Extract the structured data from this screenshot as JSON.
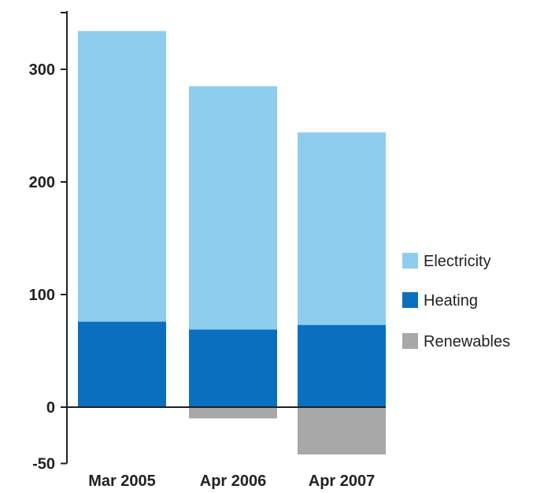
{
  "chart_data": {
    "type": "bar",
    "stacked": true,
    "title": "",
    "xlabel": "",
    "ylabel": "",
    "categories": [
      "Mar 2005",
      "Apr 2006",
      "Apr 2007"
    ],
    "series": [
      {
        "name": "Heating",
        "values": [
          76,
          69,
          73
        ],
        "color": "#0a6fbf"
      },
      {
        "name": "Electricity",
        "values": [
          258,
          216,
          171
        ],
        "color": "#8fcdee"
      },
      {
        "name": "Renewables",
        "values": [
          0,
          -10,
          -42
        ],
        "color": "#a8a8a8"
      }
    ],
    "ylim": [
      -50,
      350
    ],
    "yticks": [
      -50,
      0,
      100,
      200,
      300
    ],
    "ytick_labels": [
      "-50",
      "0",
      "100",
      "200",
      "300"
    ],
    "legend": {
      "placement": "right",
      "entries": [
        {
          "label": "Electricity",
          "color": "#8fcdee"
        },
        {
          "label": "Heating",
          "color": "#0a6fbf"
        },
        {
          "label": "Renewables",
          "color": "#a8a8a8"
        }
      ]
    },
    "grid": false
  }
}
